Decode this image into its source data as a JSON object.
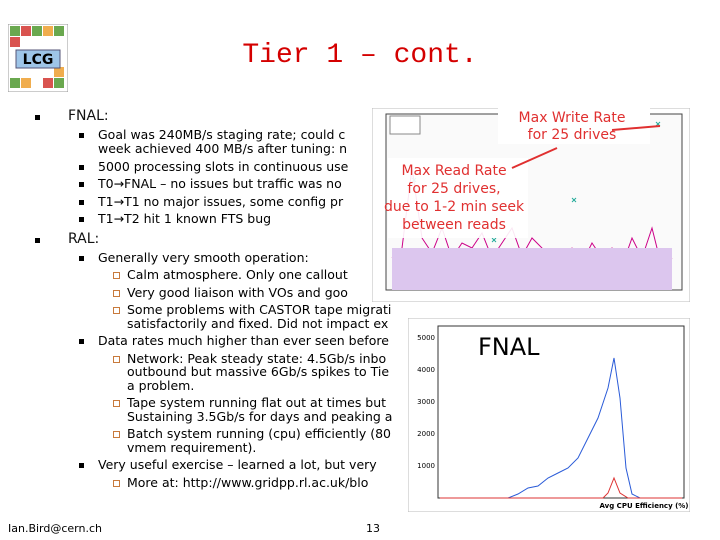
{
  "header": {
    "logo": "LCG",
    "title": "Tier 1 – cont."
  },
  "sections": [
    {
      "heading": "FNAL:",
      "items": [
        {
          "lines": [
            "Goal was 240MB/s staging rate; could c",
            "week achieved 400 MB/s after tuning: n"
          ]
        },
        {
          "lines": [
            "5000 processing slots in continuous use"
          ]
        },
        {
          "lines": [
            "T0→FNAL – no issues but traffic was no"
          ]
        },
        {
          "lines": [
            "T1→T1 no major issues, some config pr"
          ]
        },
        {
          "lines": [
            "T1→T2 hit 1 known FTS bug"
          ]
        }
      ]
    },
    {
      "heading": "RAL:",
      "items": [
        {
          "lines": [
            "Generally very smooth operation:"
          ],
          "subitems": [
            {
              "lines": [
                "Calm atmosphere. Only one callout"
              ]
            },
            {
              "lines": [
                "Very good liaison with VOs and goo"
              ]
            },
            {
              "lines": [
                "Some problems with CASTOR tape migrati",
                "satisfactorily and fixed. Did not impact ex"
              ]
            }
          ]
        },
        {
          "lines": [
            "Data rates much higher than ever seen before"
          ],
          "subitems": [
            {
              "lines": [
                "Network: Peak steady state: 4.5Gb/s inbo",
                "outbound but massive 6Gb/s spikes to Tie",
                "a problem."
              ]
            },
            {
              "lines": [
                "Tape system running flat out at times but",
                "Sustaining 3.5Gb/s for days and peaking a"
              ]
            },
            {
              "lines": [
                "Batch system running (cpu) efficiently (80",
                "vmem requirement)."
              ]
            }
          ]
        },
        {
          "lines": [
            "Very useful exercise – learned a lot, but very"
          ],
          "subitems": [
            {
              "lines": [
                "More at: http://www.gridpp.rl.ac.uk/blo"
              ]
            }
          ]
        }
      ]
    }
  ],
  "rate_figure": {
    "write_annotation": [
      "Max Write Rate",
      "for 25 drives"
    ],
    "read_annotation": [
      "Max Read Rate",
      "for 25 drives,",
      "due to 1-2 min seek",
      "between reads"
    ]
  },
  "cpu_figure": {
    "label": "FNAL",
    "axis_labels": [
      "5000",
      "4000",
      "3000",
      "2000",
      "1000"
    ],
    "x_label": "Avg CPU Efficiency (%)"
  },
  "footer": {
    "email": "Ian.Bird@cern.ch",
    "page": "13"
  }
}
